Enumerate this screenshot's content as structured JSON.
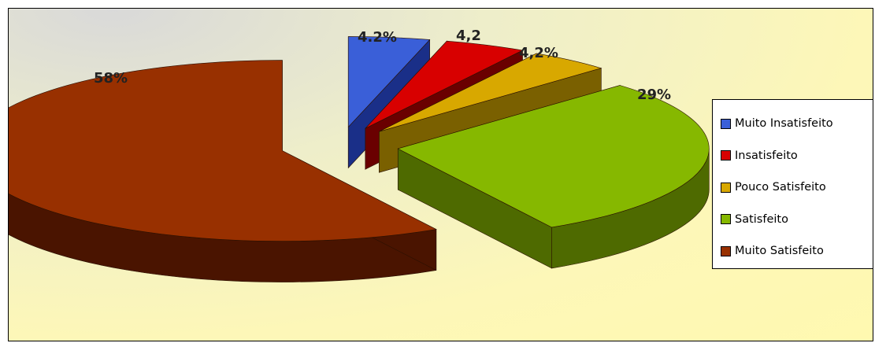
{
  "chart_data": {
    "type": "pie",
    "style": "3d-exploded",
    "slices": [
      {
        "name": "Muito Insatisfeito",
        "value": 4.2,
        "label": "4.2%",
        "color": "#3a5fd8",
        "dark": "#1a2f88"
      },
      {
        "name": "Insatisfeito",
        "value": 4.2,
        "label": "4,2",
        "color": "#d80000",
        "dark": "#6a0000"
      },
      {
        "name": "Pouco Satisfeito",
        "value": 4.2,
        "label": "4,2%",
        "color": "#d8a800",
        "dark": "#7a6000"
      },
      {
        "name": "Satisfeito",
        "value": 29,
        "label": "29%",
        "color": "#86b800",
        "dark": "#4e6a00"
      },
      {
        "name": "Muito Satisfeito",
        "value": 58,
        "label": "58%",
        "color": "#983000",
        "dark": "#4a1400"
      }
    ],
    "legend_position": "right"
  }
}
